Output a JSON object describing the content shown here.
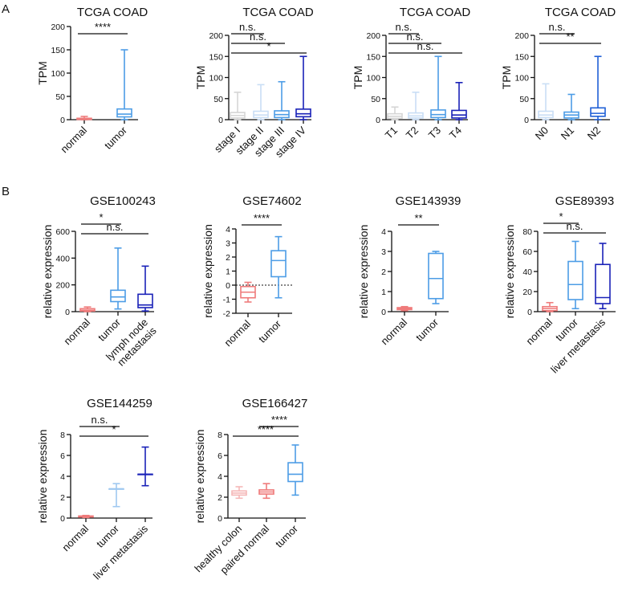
{
  "panel_labels": [
    "A",
    "B"
  ],
  "colors": {
    "normal": "#ef7b7b",
    "normal_light": "#f5b8b8",
    "tumor": "#4d9de6",
    "mid_blue": "#1f5fd6",
    "dark_blue": "#1a22b8",
    "pale_blue": "#c9def5",
    "light_blue": "#9fc8f0",
    "light_gray": "#d5d5d5"
  },
  "chart_data": [
    {
      "type": "box",
      "title": "TCGA COAD",
      "ylabel": "TPM",
      "ylim": [
        0,
        200
      ],
      "yticks": [
        0,
        50,
        100,
        150,
        200
      ],
      "categories": [
        "normal",
        "tumor"
      ],
      "boxes": [
        {
          "category": "normal",
          "color": "normal",
          "min": 0,
          "q1": 0.5,
          "median": 1.5,
          "q3": 3,
          "max": 7
        },
        {
          "category": "tumor",
          "color": "tumor",
          "min": 0,
          "q1": 6,
          "median": 12,
          "q3": 23,
          "max": 150
        }
      ],
      "significance": [
        {
          "from": 0,
          "to": 1,
          "label": "****"
        }
      ]
    },
    {
      "type": "box",
      "title": "TCGA COAD",
      "ylabel": "TPM",
      "ylim": [
        0,
        200
      ],
      "yticks": [
        0,
        50,
        100,
        150,
        200
      ],
      "categories": [
        "stage I",
        "stage II",
        "stage III",
        "stage IV"
      ],
      "boxes": [
        {
          "category": "stage I",
          "color": "light_gray",
          "min": 0,
          "q1": 4,
          "median": 10,
          "q3": 17,
          "max": 65
        },
        {
          "category": "stage II",
          "color": "pale_blue",
          "min": 0,
          "q1": 5,
          "median": 11,
          "q3": 20,
          "max": 83
        },
        {
          "category": "stage III",
          "color": "tumor",
          "min": 0,
          "q1": 5,
          "median": 12,
          "q3": 21,
          "max": 90
        },
        {
          "category": "stage IV",
          "color": "dark_blue",
          "min": 0,
          "q1": 7,
          "median": 14,
          "q3": 25,
          "max": 150
        }
      ],
      "significance": [
        {
          "from": 0,
          "to": 1,
          "label": "n.s."
        },
        {
          "from": 0,
          "to": 2,
          "label": "n.s."
        },
        {
          "from": 0,
          "to": 3,
          "label": "*"
        }
      ]
    },
    {
      "type": "box",
      "title": "TCGA COAD",
      "ylabel": "TPM",
      "ylim": [
        0,
        200
      ],
      "yticks": [
        0,
        50,
        100,
        150,
        200
      ],
      "categories": [
        "T1",
        "T2",
        "T3",
        "T4"
      ],
      "boxes": [
        {
          "category": "T1",
          "color": "light_gray",
          "min": 0,
          "q1": 3,
          "median": 8,
          "q3": 14,
          "max": 30
        },
        {
          "category": "T2",
          "color": "pale_blue",
          "min": 0,
          "q1": 4,
          "median": 9,
          "q3": 16,
          "max": 65
        },
        {
          "category": "T3",
          "color": "tumor",
          "min": 0,
          "q1": 5,
          "median": 12,
          "q3": 23,
          "max": 150
        },
        {
          "category": "T4",
          "color": "dark_blue",
          "min": 0,
          "q1": 4,
          "median": 11,
          "q3": 22,
          "max": 88
        }
      ],
      "significance": [
        {
          "from": 0,
          "to": 1,
          "label": "n.s."
        },
        {
          "from": 0,
          "to": 2,
          "label": "n.s."
        },
        {
          "from": 0,
          "to": 3,
          "label": "n.s."
        }
      ]
    },
    {
      "type": "box",
      "title": "TCGA COAD",
      "ylabel": "TPM",
      "ylim": [
        0,
        200
      ],
      "yticks": [
        0,
        50,
        100,
        150,
        200
      ],
      "categories": [
        "N0",
        "N1",
        "N2"
      ],
      "boxes": [
        {
          "category": "N0",
          "color": "pale_blue",
          "min": 0,
          "q1": 5,
          "median": 11,
          "q3": 20,
          "max": 85
        },
        {
          "category": "N1",
          "color": "tumor",
          "min": 0,
          "q1": 4,
          "median": 11,
          "q3": 18,
          "max": 60
        },
        {
          "category": "N2",
          "color": "mid_blue",
          "min": 0,
          "q1": 8,
          "median": 15,
          "q3": 28,
          "max": 150
        }
      ],
      "significance": [
        {
          "from": 0,
          "to": 1,
          "label": "n.s."
        },
        {
          "from": 0,
          "to": 2,
          "label": "**"
        }
      ]
    },
    {
      "type": "box",
      "title": "GSE100243",
      "ylabel": "relative expression",
      "ylim": [
        0,
        600
      ],
      "yticks": [
        0,
        200,
        400,
        600
      ],
      "categories": [
        "normal",
        "tumor",
        "lymph node metastasis"
      ],
      "boxes": [
        {
          "category": "normal",
          "color": "normal",
          "min": 0,
          "q1": 5,
          "median": 10,
          "q3": 22,
          "max": 35
        },
        {
          "category": "tumor",
          "color": "tumor",
          "min": 20,
          "q1": 75,
          "median": 110,
          "q3": 160,
          "max": 475
        },
        {
          "category": "lymph node metastasis",
          "color": "dark_blue",
          "min": 5,
          "q1": 30,
          "median": 50,
          "q3": 130,
          "max": 340
        }
      ],
      "significance": [
        {
          "from": 0,
          "to": 1,
          "label": "*"
        },
        {
          "from": 0,
          "to": 2,
          "label": "n.s."
        }
      ]
    },
    {
      "type": "box",
      "title": "GSE74602",
      "ylabel": "relative expression",
      "ylim": [
        -2,
        4
      ],
      "yticks": [
        -2,
        -1,
        0,
        1,
        2,
        3,
        4
      ],
      "reference_line": 0,
      "categories": [
        "normal",
        "tumor"
      ],
      "boxes": [
        {
          "category": "normal",
          "color": "normal",
          "min": -1.2,
          "q1": -0.9,
          "median": -0.5,
          "q3": -0.1,
          "max": 0.2
        },
        {
          "category": "tumor",
          "color": "tumor",
          "min": -0.9,
          "q1": 0.6,
          "median": 1.75,
          "q3": 2.45,
          "max": 3.45
        }
      ],
      "significance": [
        {
          "from": 0,
          "to": 1,
          "label": "****"
        }
      ]
    },
    {
      "type": "box",
      "title": "GSE143939",
      "ylabel": "relative expression",
      "ylim": [
        0,
        4
      ],
      "yticks": [
        0,
        1,
        2,
        3,
        4
      ],
      "categories": [
        "normal",
        "tumor"
      ],
      "boxes": [
        {
          "category": "normal",
          "color": "normal",
          "min": 0.05,
          "q1": 0.1,
          "median": 0.15,
          "q3": 0.2,
          "max": 0.25
        },
        {
          "category": "tumor",
          "color": "tumor",
          "min": 0.4,
          "q1": 0.65,
          "median": 1.65,
          "q3": 2.9,
          "max": 3.0
        }
      ],
      "significance": [
        {
          "from": 0,
          "to": 1,
          "label": "**"
        }
      ]
    },
    {
      "type": "box",
      "title": "GSE89393",
      "ylabel": "relative expression",
      "ylim": [
        0,
        80
      ],
      "yticks": [
        0,
        20,
        40,
        60,
        80
      ],
      "categories": [
        "normal",
        "tumor",
        "liver metastasis"
      ],
      "boxes": [
        {
          "category": "normal",
          "color": "normal",
          "min": 0,
          "q1": 1,
          "median": 3,
          "q3": 5,
          "max": 9
        },
        {
          "category": "tumor",
          "color": "tumor",
          "min": 3,
          "q1": 12,
          "median": 27,
          "q3": 50,
          "max": 70
        },
        {
          "category": "liver metastasis",
          "color": "dark_blue",
          "min": 3,
          "q1": 8,
          "median": 14,
          "q3": 47,
          "max": 68
        }
      ],
      "significance": [
        {
          "from": 0,
          "to": 1,
          "label": "*"
        },
        {
          "from": 0,
          "to": 2,
          "label": "n.s."
        }
      ]
    },
    {
      "type": "box",
      "title": "GSE144259",
      "ylabel": "relative expression",
      "ylim": [
        0,
        8
      ],
      "yticks": [
        0,
        2,
        4,
        6,
        8
      ],
      "categories": [
        "normal",
        "tumor",
        "liver metastasis"
      ],
      "boxes": [
        {
          "category": "normal",
          "color": "normal",
          "min": 0.05,
          "q1": 0.1,
          "median": 0.15,
          "q3": 0.2,
          "max": 0.25
        },
        {
          "category": "tumor",
          "color": "light_blue",
          "min": 1.1,
          "q1": 2.8,
          "median": 2.8,
          "q3": 2.8,
          "max": 3.3
        },
        {
          "category": "liver metastasis",
          "color": "dark_blue",
          "min": 3.1,
          "q1": 4.2,
          "median": 4.2,
          "q3": 4.2,
          "max": 6.8
        }
      ],
      "significance": [
        {
          "from": 0,
          "to": 1,
          "label": "n.s."
        },
        {
          "from": 0,
          "to": 2,
          "label": "*"
        }
      ]
    },
    {
      "type": "box",
      "title": "GSE166427",
      "ylabel": "relative expression",
      "ylim": [
        0,
        8
      ],
      "yticks": [
        0,
        2,
        4,
        6,
        8
      ],
      "categories": [
        "healthy colon",
        "paired normal",
        "tumor"
      ],
      "boxes": [
        {
          "category": "healthy colon",
          "color": "normal_light",
          "min": 1.9,
          "q1": 2.2,
          "median": 2.4,
          "q3": 2.6,
          "max": 3.0
        },
        {
          "category": "paired normal",
          "color": "normal",
          "min": 1.9,
          "q1": 2.3,
          "median": 2.5,
          "q3": 2.7,
          "max": 3.3
        },
        {
          "category": "tumor",
          "color": "tumor",
          "min": 2.2,
          "q1": 3.5,
          "median": 4.2,
          "q3": 5.3,
          "max": 7.0
        }
      ],
      "significance": [
        {
          "from": 1,
          "to": 2,
          "label": "****"
        },
        {
          "from": 0,
          "to": 2,
          "label": "****"
        }
      ]
    }
  ]
}
